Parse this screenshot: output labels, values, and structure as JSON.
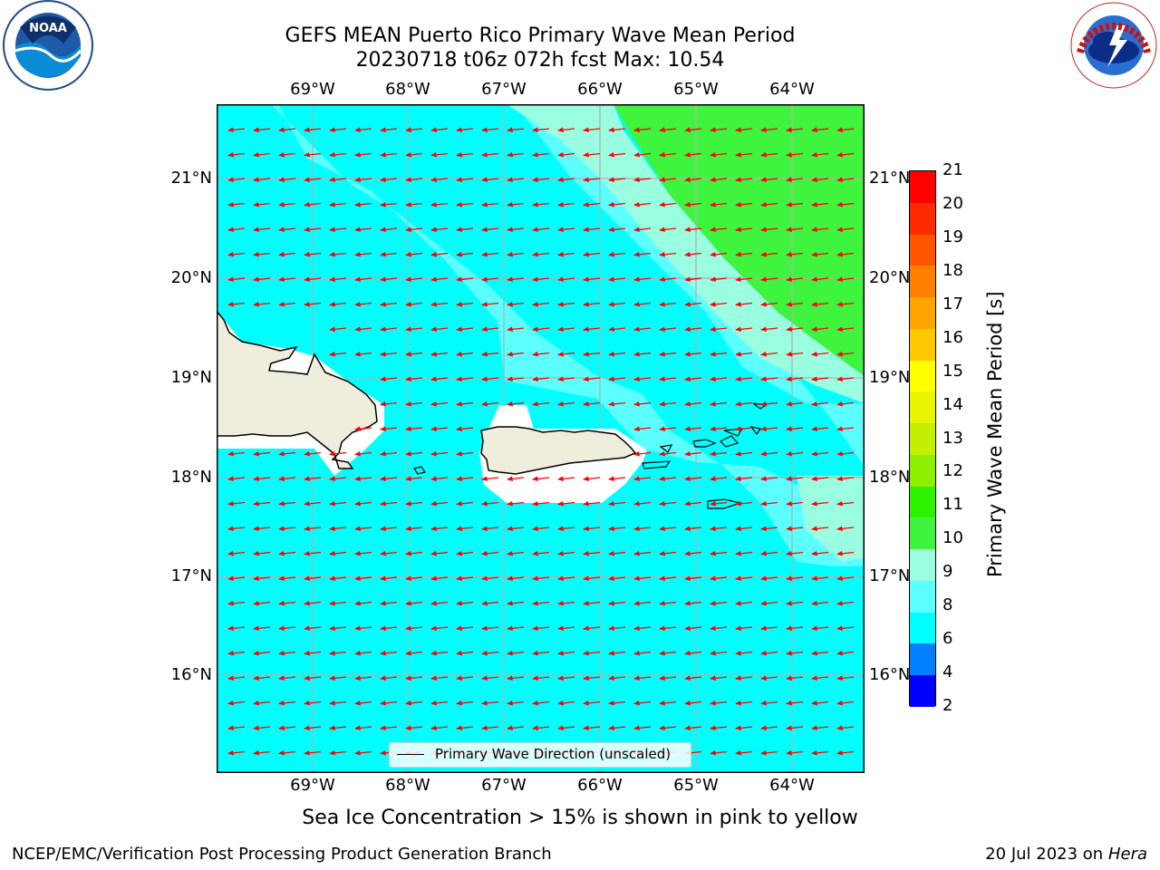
{
  "header": {
    "title_line1": "GEFS MEAN Puerto Rico Primary Wave Mean Period",
    "title_line2": "20230718 t06z 072h fcst   Max: 10.54"
  },
  "map": {
    "lon_ticks": [
      "69°W",
      "68°W",
      "67°W",
      "66°W",
      "65°W",
      "64°W"
    ],
    "lat_ticks_left": [
      "21°N",
      "20°N",
      "19°N",
      "18°N",
      "17°N",
      "16°N"
    ],
    "lat_ticks_right": [
      "21°N",
      "20°N",
      "19°N",
      "18°N",
      "17°N",
      "16°N"
    ],
    "legend_text": "Primary Wave Direction (unscaled)",
    "land_color": "#efeddc",
    "arrow_color": "#ff0000",
    "field_colors": {
      "period_6_8": "#00ffff",
      "period_8_9": "#5cffff",
      "period_9_10": "#99ffe0",
      "period_10_11": "#3ef43e"
    }
  },
  "colorbar": {
    "title": "Primary Wave Mean Period [s]",
    "levels": [
      "21",
      "20",
      "19",
      "18",
      "17",
      "16",
      "15",
      "14",
      "13",
      "12",
      "11",
      "10",
      "9",
      "8",
      "6",
      "4",
      "2"
    ],
    "colors": [
      "#ff0000",
      "#ff2a00",
      "#ff5500",
      "#ff7f00",
      "#ffa500",
      "#ffc800",
      "#ffff00",
      "#e8f500",
      "#c4ef00",
      "#8ef000",
      "#2cf400",
      "#3ef43e",
      "#99ffe0",
      "#5cffff",
      "#00ffff",
      "#007fff",
      "#0000ff"
    ]
  },
  "logos": {
    "noaa_text": "NOAA",
    "nws_text": "NATIONAL WEATHER SERVICE"
  },
  "footer": {
    "subtitle": "Sea Ice Concentration > 15% is shown in pink to yellow",
    "branch": "NCEP/EMC/Verification Post Processing Product Generation Branch",
    "date": "20 Jul 2023 on ",
    "machine": "Hera"
  }
}
